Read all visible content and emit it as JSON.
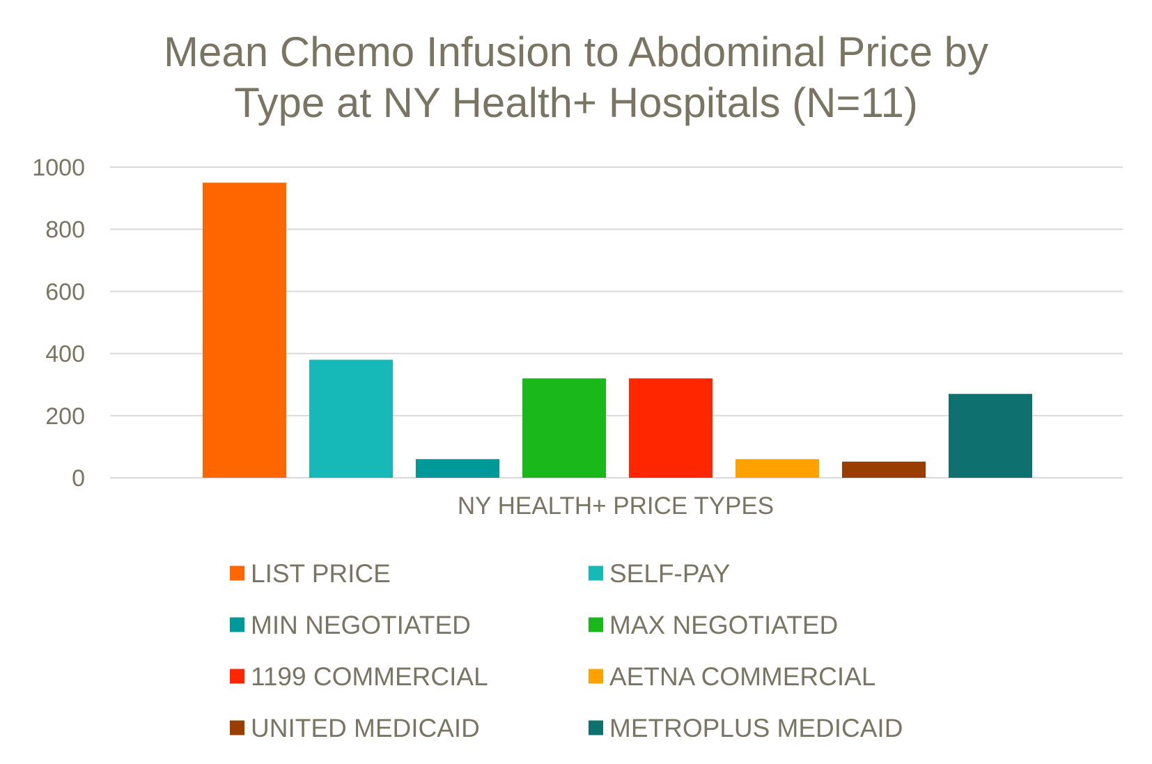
{
  "chart_data": {
    "type": "bar",
    "title_lines": [
      "Mean Chemo Infusion to Abdominal Price by",
      "Type at NY Health+ Hospitals (N=11)"
    ],
    "xlabel": "NY HEALTH+ PRICE TYPES",
    "ylabel": "",
    "ylim": [
      0,
      1000
    ],
    "yticks": [
      0,
      200,
      400,
      600,
      800,
      1000
    ],
    "grid": true,
    "legend_position": "bottom",
    "series": [
      {
        "name": "LIST PRICE",
        "value": 950,
        "color": "#ff6600"
      },
      {
        "name": "SELF-PAY",
        "value": 380,
        "color": "#17b8b8"
      },
      {
        "name": "MIN NEGOTIATED",
        "value": 60,
        "color": "#009999"
      },
      {
        "name": "MAX NEGOTIATED",
        "value": 320,
        "color": "#1ab81a"
      },
      {
        "name": "1199 COMMERCIAL",
        "value": 320,
        "color": "#ff2600"
      },
      {
        "name": "AETNA COMMERCIAL",
        "value": 60,
        "color": "#ffa200"
      },
      {
        "name": "UNITED MEDICAID",
        "value": 52,
        "color": "#993d00"
      },
      {
        "name": "METROPLUS MEDICAID",
        "value": 270,
        "color": "#0f7070"
      }
    ]
  }
}
